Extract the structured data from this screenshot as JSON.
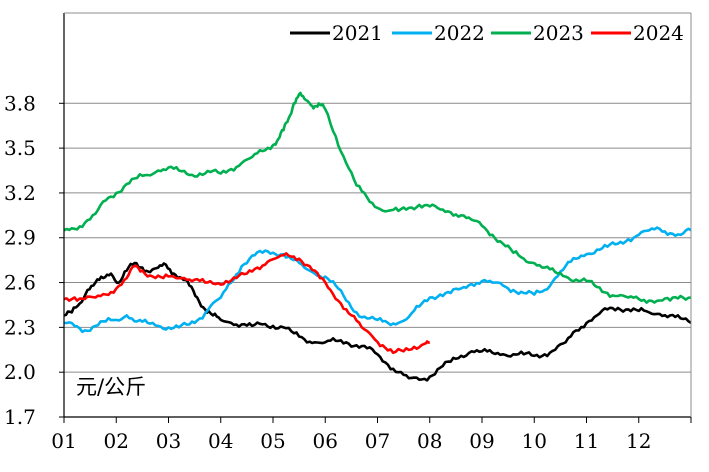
{
  "chart_data": {
    "type": "line",
    "title": "",
    "xlabel": "",
    "ylabel": "元/公斤",
    "ylim": [
      1.7,
      3.9
    ],
    "yticks": [
      "1.7",
      "2.0",
      "2.3",
      "2.6",
      "2.9",
      "3.2",
      "3.5",
      "3.8"
    ],
    "ytick_values": [
      1.7,
      2.0,
      2.3,
      2.6,
      2.9,
      3.2,
      3.5,
      3.8
    ],
    "xticks": [
      "01",
      "02",
      "03",
      "04",
      "05",
      "06",
      "07",
      "08",
      "09",
      "10",
      "11",
      "12"
    ],
    "x_unit": "month (fractional)",
    "grid": "horizontal",
    "legend_position": "top-right",
    "series": [
      {
        "name": "2021",
        "color": "#000000",
        "x": [
          1.0,
          1.15,
          1.3,
          1.45,
          1.6,
          1.75,
          1.9,
          2.05,
          2.2,
          2.35,
          2.5,
          2.65,
          2.8,
          2.95,
          3.1,
          3.25,
          3.4,
          3.55,
          3.7,
          3.85,
          4.0,
          4.2,
          4.4,
          4.6,
          4.8,
          5.0,
          5.2,
          5.4,
          5.6,
          5.8,
          6.0,
          6.2,
          6.4,
          6.6,
          6.8,
          7.0,
          7.2,
          7.4,
          7.6,
          7.8,
          8.0,
          8.2,
          8.4,
          8.6,
          8.8,
          9.0,
          9.2,
          9.4,
          9.6,
          9.8,
          10.0,
          10.2,
          10.4,
          10.6,
          10.8,
          11.0,
          11.2,
          11.4,
          11.6,
          11.8,
          12.0,
          12.2,
          12.4,
          12.6,
          12.8,
          13.0
        ],
        "values": [
          2.38,
          2.4,
          2.46,
          2.55,
          2.6,
          2.63,
          2.66,
          2.6,
          2.68,
          2.73,
          2.7,
          2.67,
          2.7,
          2.72,
          2.66,
          2.63,
          2.58,
          2.5,
          2.42,
          2.38,
          2.35,
          2.33,
          2.32,
          2.31,
          2.32,
          2.31,
          2.3,
          2.26,
          2.22,
          2.2,
          2.2,
          2.21,
          2.2,
          2.18,
          2.16,
          2.12,
          2.05,
          2.0,
          1.96,
          1.95,
          1.97,
          2.03,
          2.07,
          2.11,
          2.14,
          2.14,
          2.13,
          2.12,
          2.12,
          2.12,
          2.11,
          2.12,
          2.15,
          2.2,
          2.28,
          2.33,
          2.38,
          2.42,
          2.43,
          2.42,
          2.41,
          2.4,
          2.39,
          2.38,
          2.36,
          2.33
        ]
      },
      {
        "name": "2022",
        "color": "#00b0f0",
        "x": [
          1.0,
          1.2,
          1.4,
          1.6,
          1.8,
          2.0,
          2.2,
          2.4,
          2.6,
          2.8,
          3.0,
          3.2,
          3.4,
          3.6,
          3.8,
          4.0,
          4.2,
          4.4,
          4.6,
          4.8,
          5.0,
          5.2,
          5.4,
          5.6,
          5.8,
          6.0,
          6.2,
          6.4,
          6.6,
          6.8,
          7.0,
          7.2,
          7.4,
          7.6,
          7.8,
          8.0,
          8.2,
          8.4,
          8.6,
          8.8,
          9.0,
          9.2,
          9.4,
          9.6,
          9.8,
          10.0,
          10.2,
          10.4,
          10.6,
          10.8,
          11.0,
          11.2,
          11.4,
          11.6,
          11.8,
          12.0,
          12.2,
          12.4,
          12.6,
          12.8,
          13.0
        ],
        "values": [
          2.33,
          2.31,
          2.28,
          2.31,
          2.34,
          2.35,
          2.38,
          2.34,
          2.33,
          2.31,
          2.3,
          2.3,
          2.32,
          2.36,
          2.44,
          2.5,
          2.6,
          2.71,
          2.78,
          2.8,
          2.8,
          2.79,
          2.75,
          2.7,
          2.66,
          2.64,
          2.58,
          2.48,
          2.4,
          2.36,
          2.35,
          2.33,
          2.33,
          2.37,
          2.44,
          2.5,
          2.52,
          2.53,
          2.56,
          2.59,
          2.61,
          2.6,
          2.58,
          2.55,
          2.53,
          2.52,
          2.55,
          2.63,
          2.71,
          2.76,
          2.79,
          2.82,
          2.84,
          2.86,
          2.89,
          2.92,
          2.95,
          2.96,
          2.93,
          2.92,
          2.95
        ]
      },
      {
        "name": "2023",
        "color": "#00b050",
        "x": [
          1.0,
          1.2,
          1.4,
          1.6,
          1.8,
          2.0,
          2.2,
          2.4,
          2.6,
          2.8,
          3.0,
          3.2,
          3.4,
          3.6,
          3.8,
          4.0,
          4.2,
          4.4,
          4.6,
          4.8,
          5.0,
          5.1,
          5.2,
          5.3,
          5.4,
          5.5,
          5.6,
          5.7,
          5.8,
          5.9,
          6.0,
          6.2,
          6.4,
          6.6,
          6.8,
          7.0,
          7.2,
          7.4,
          7.6,
          7.8,
          8.0,
          8.2,
          8.4,
          8.6,
          8.8,
          9.0,
          9.2,
          9.4,
          9.6,
          9.8,
          10.0,
          10.2,
          10.4,
          10.6,
          10.8,
          11.0,
          11.2,
          11.4,
          11.6,
          11.8,
          12.0,
          12.2,
          12.4,
          12.6,
          12.8,
          13.0
        ],
        "values": [
          2.95,
          2.96,
          3.0,
          3.06,
          3.15,
          3.2,
          3.26,
          3.3,
          3.32,
          3.35,
          3.37,
          3.35,
          3.32,
          3.33,
          3.34,
          3.33,
          3.36,
          3.4,
          3.44,
          3.48,
          3.52,
          3.56,
          3.62,
          3.7,
          3.8,
          3.86,
          3.83,
          3.8,
          3.78,
          3.79,
          3.76,
          3.58,
          3.4,
          3.25,
          3.17,
          3.1,
          3.08,
          3.08,
          3.1,
          3.12,
          3.11,
          3.09,
          3.07,
          3.05,
          3.02,
          2.98,
          2.92,
          2.86,
          2.8,
          2.76,
          2.73,
          2.7,
          2.67,
          2.64,
          2.62,
          2.61,
          2.57,
          2.53,
          2.51,
          2.5,
          2.49,
          2.48,
          2.48,
          2.48,
          2.51,
          2.5
        ]
      },
      {
        "name": "2024",
        "color": "#ff0000",
        "x": [
          1.0,
          1.2,
          1.4,
          1.6,
          1.8,
          2.0,
          2.2,
          2.35,
          2.5,
          2.7,
          2.9,
          3.1,
          3.3,
          3.5,
          3.7,
          3.9,
          4.1,
          4.3,
          4.5,
          4.7,
          4.9,
          5.1,
          5.3,
          5.5,
          5.7,
          5.9,
          6.1,
          6.3,
          6.5,
          6.7,
          6.9,
          7.1,
          7.3,
          7.5,
          7.7,
          7.9,
          8.0
        ],
        "values": [
          2.49,
          2.5,
          2.49,
          2.5,
          2.52,
          2.56,
          2.63,
          2.71,
          2.68,
          2.64,
          2.63,
          2.64,
          2.63,
          2.62,
          2.6,
          2.59,
          2.61,
          2.63,
          2.66,
          2.7,
          2.74,
          2.77,
          2.78,
          2.76,
          2.71,
          2.63,
          2.55,
          2.46,
          2.38,
          2.3,
          2.24,
          2.18,
          2.13,
          2.14,
          2.17,
          2.19,
          2.2
        ]
      }
    ]
  }
}
